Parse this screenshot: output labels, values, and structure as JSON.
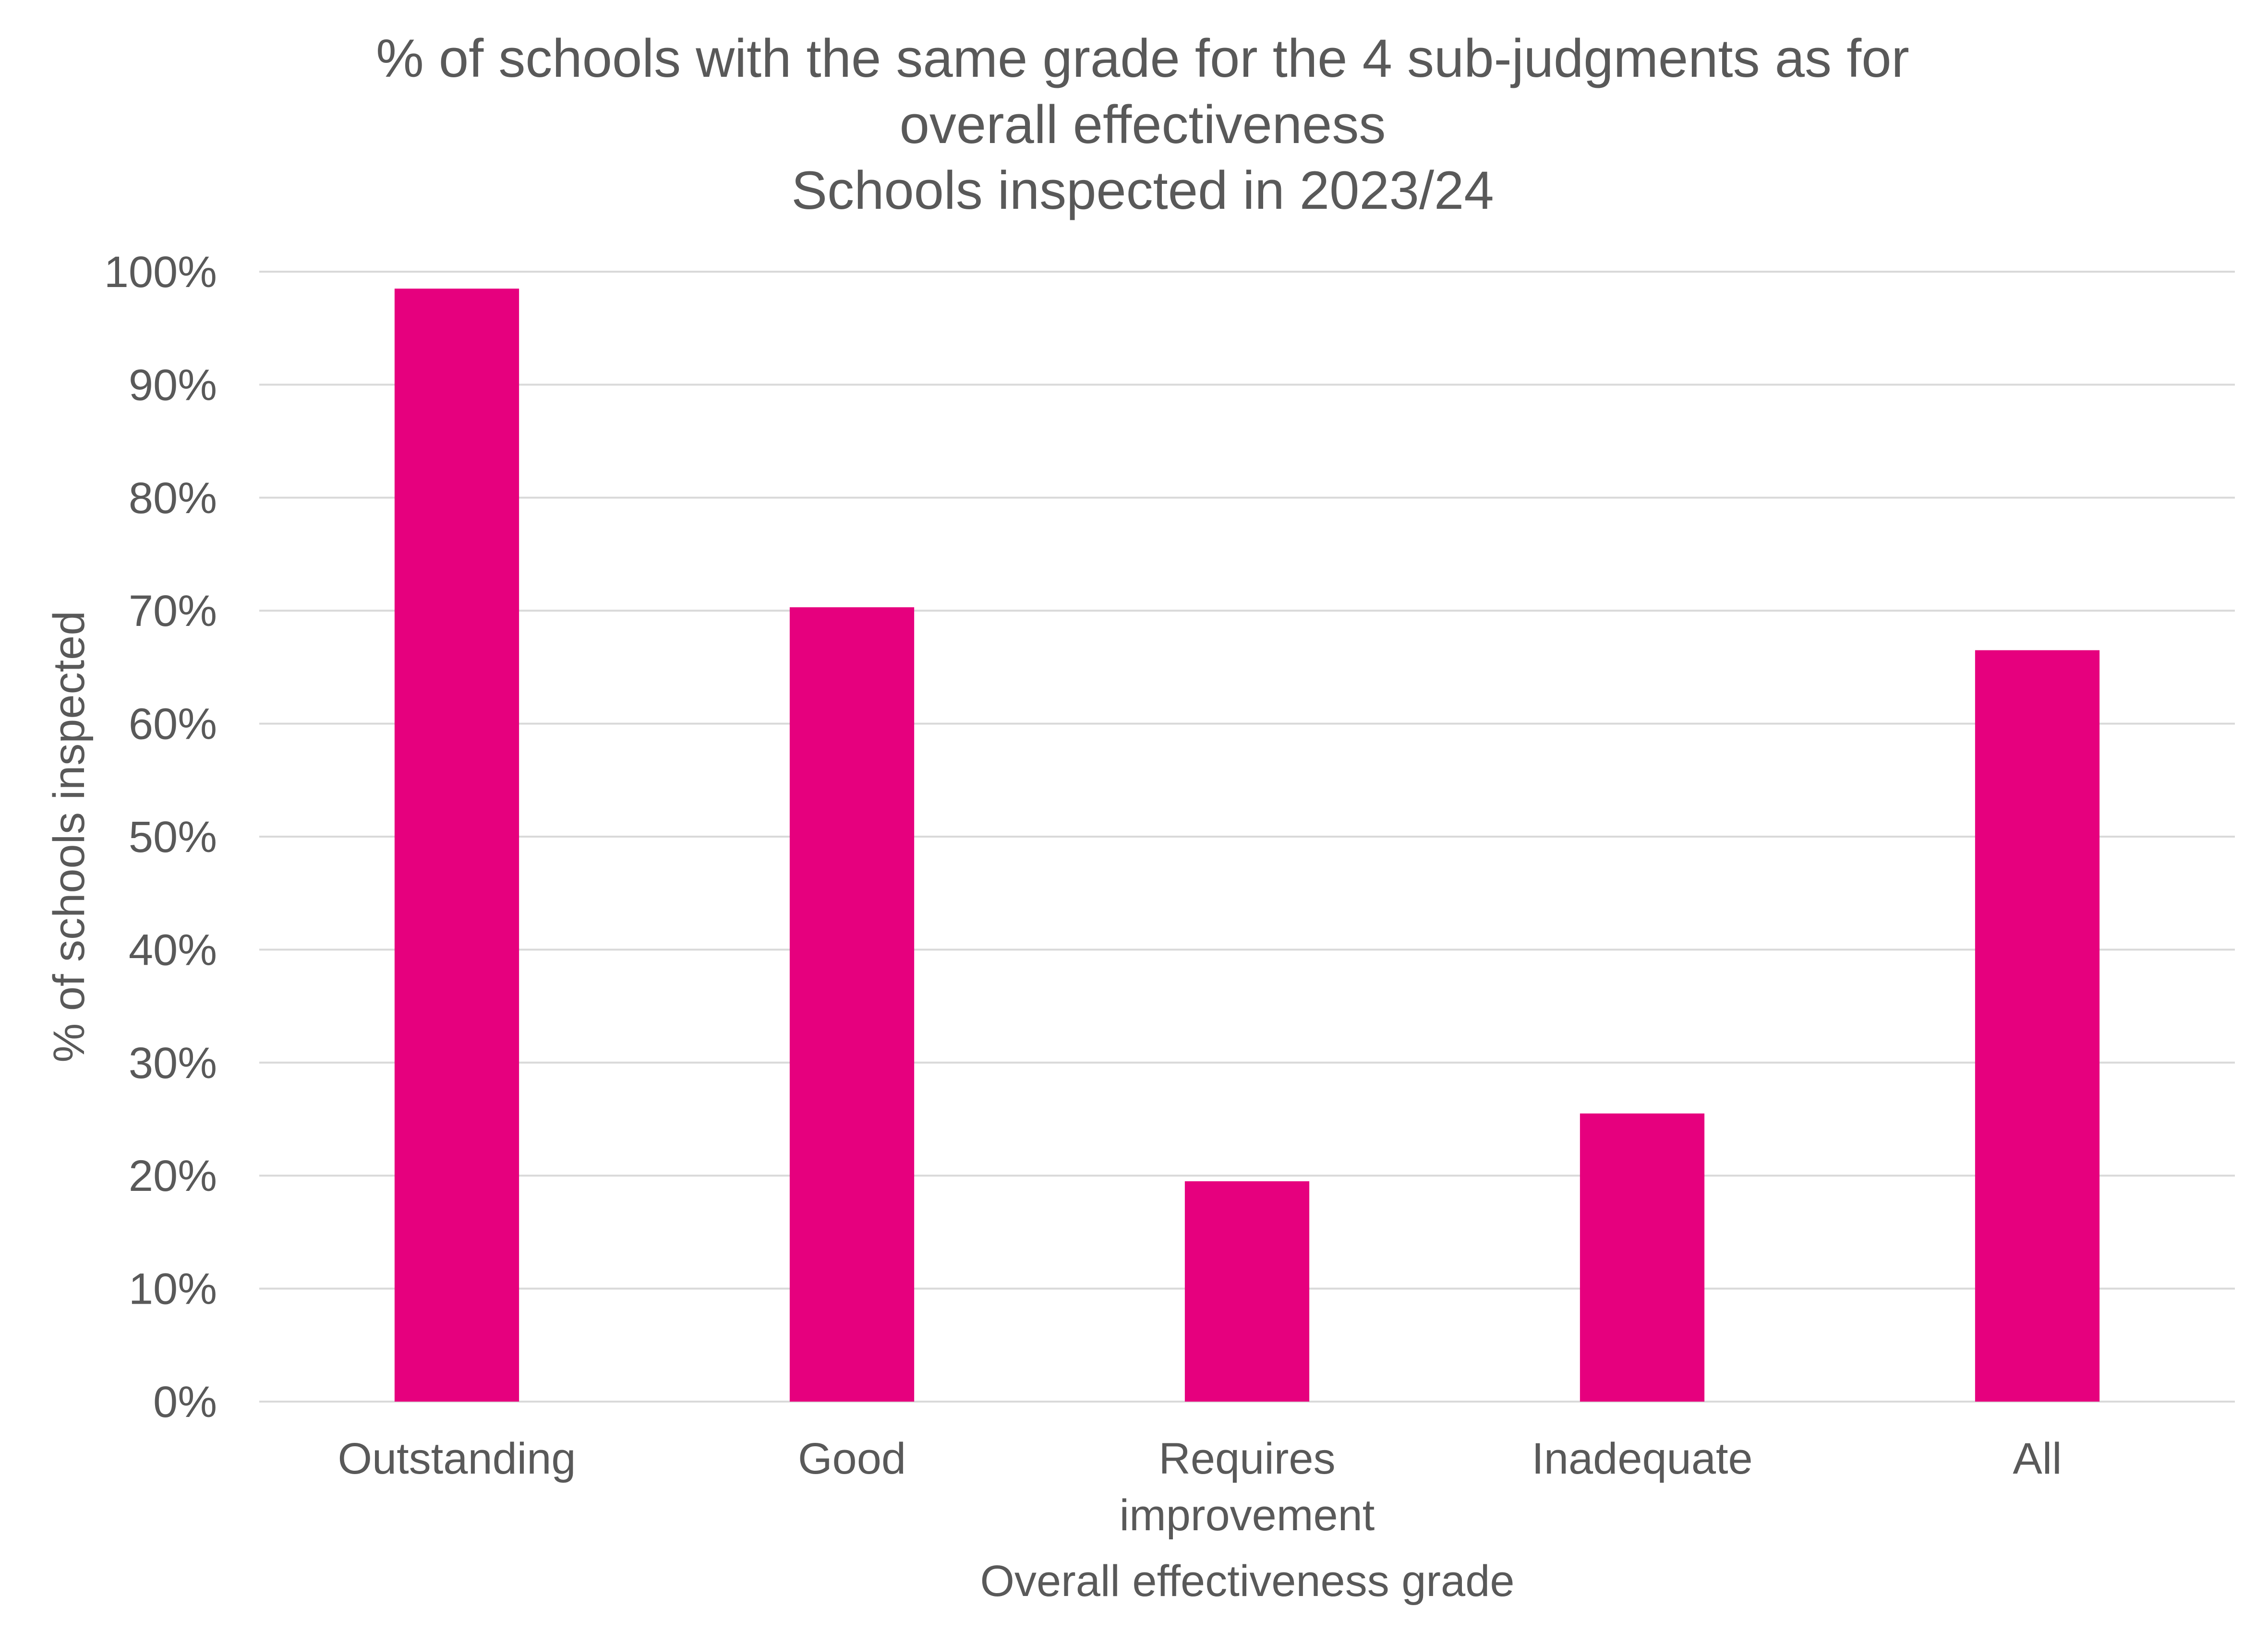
{
  "chart_data": {
    "type": "bar",
    "title_lines": [
      "% of schools with the same grade for the 4 sub-judgments as for",
      "overall effectiveness",
      "Schools inspected in 2023/24"
    ],
    "xlabel": "Overall effectiveness grade",
    "ylabel": "% of schools inspected",
    "categories": [
      [
        "Outstanding"
      ],
      [
        "Good"
      ],
      [
        "Requires",
        "improvement"
      ],
      [
        "Inadequate"
      ],
      [
        "All"
      ]
    ],
    "values": [
      98.5,
      70.3,
      19.5,
      25.5,
      66.5
    ],
    "ylim": [
      0,
      100
    ],
    "yticks": [
      0,
      10,
      20,
      30,
      40,
      50,
      60,
      70,
      80,
      90,
      100
    ],
    "ytick_suffix": "%",
    "grid": true,
    "colors": {
      "bar": "#E6007E",
      "grid": "#D9D9D9",
      "text": "#595959"
    }
  }
}
